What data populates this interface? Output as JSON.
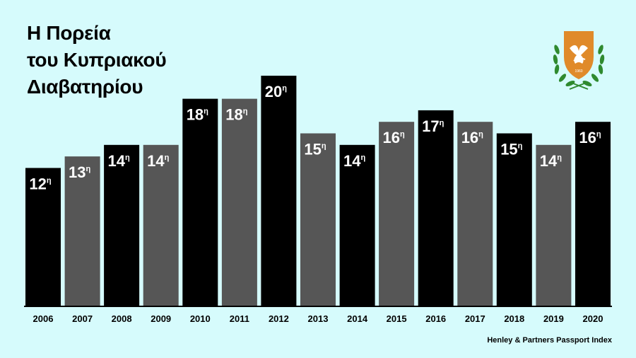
{
  "title_lines": [
    "Η Πορεία",
    "του Κυπριακού",
    "Διαβατηρίου"
  ],
  "source": "Henley & Partners Passport Index",
  "emblem": {
    "icon": "cyprus-coat-of-arms-icon",
    "year_text": "1960"
  },
  "colors": {
    "background": "#d6fbfc",
    "bar_dark": "#000000",
    "bar_gray": "#565656",
    "axis": "#000000"
  },
  "chart_data": {
    "type": "bar",
    "title": "Η Πορεία του Κυπριακού Διαβατηρίου",
    "categories": [
      "2006",
      "2007",
      "2008",
      "2009",
      "2010",
      "2011",
      "2012",
      "2013",
      "2014",
      "2015",
      "2016",
      "2017",
      "2018",
      "2019",
      "2020"
    ],
    "values": [
      12,
      13,
      14,
      14,
      18,
      18,
      20,
      15,
      14,
      16,
      17,
      16,
      15,
      14,
      16
    ],
    "data_labels": [
      "12",
      "13",
      "14",
      "14",
      "18",
      "18",
      "20",
      "15",
      "14",
      "16",
      "17",
      "16",
      "15",
      "14",
      "16"
    ],
    "label_suffix": "η",
    "bar_colors": [
      "#000000",
      "#565656",
      "#000000",
      "#565656",
      "#000000",
      "#565656",
      "#000000",
      "#565656",
      "#000000",
      "#565656",
      "#000000",
      "#565656",
      "#000000",
      "#565656",
      "#000000"
    ],
    "xlabel": "",
    "ylabel": "",
    "grid": false,
    "legend": "none"
  }
}
